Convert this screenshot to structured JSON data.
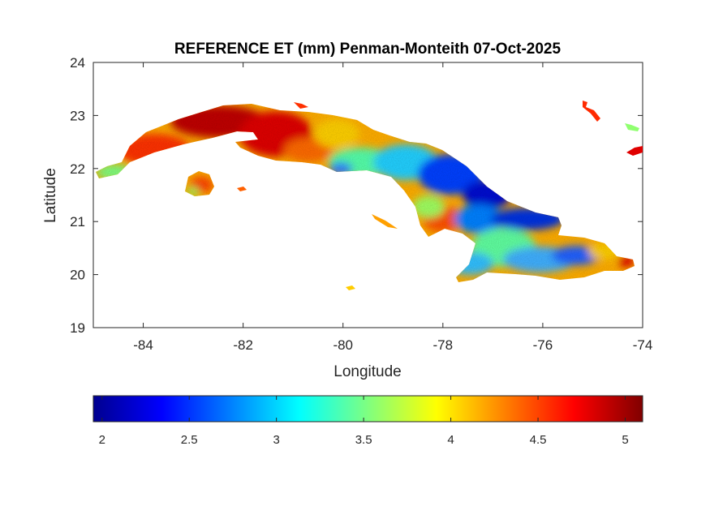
{
  "title": "REFERENCE ET (mm) Penman-Monteith 07-Oct-2025",
  "map": {
    "xlabel": "Longitude",
    "ylabel": "Latitude",
    "xlim": [
      -85,
      -74
    ],
    "ylim": [
      19,
      24
    ],
    "xticks": [
      {
        "value": -84,
        "label": "-84"
      },
      {
        "value": -82,
        "label": "-82"
      },
      {
        "value": -80,
        "label": "-80"
      },
      {
        "value": -78,
        "label": "-78"
      },
      {
        "value": -76,
        "label": "-76"
      },
      {
        "value": -74,
        "label": "-74"
      }
    ],
    "yticks": [
      {
        "value": 19,
        "label": "19"
      },
      {
        "value": 20,
        "label": "20"
      },
      {
        "value": 21,
        "label": "21"
      },
      {
        "value": 22,
        "label": "22"
      },
      {
        "value": 23,
        "label": "23"
      },
      {
        "value": 24,
        "label": "24"
      }
    ]
  },
  "colorbar": {
    "colormap": "jet",
    "range": [
      1.95,
      5.1
    ],
    "ticks": [
      {
        "value": 2,
        "label": "2"
      },
      {
        "value": 2.5,
        "label": "2.5"
      },
      {
        "value": 3,
        "label": "3"
      },
      {
        "value": 3.5,
        "label": "3.5"
      },
      {
        "value": 4,
        "label": "4"
      },
      {
        "value": 4.5,
        "label": "4.5"
      },
      {
        "value": 5,
        "label": "5"
      }
    ]
  },
  "colors": {
    "low": "#00008f",
    "mid": "#00ffff",
    "high": "#800000"
  }
}
